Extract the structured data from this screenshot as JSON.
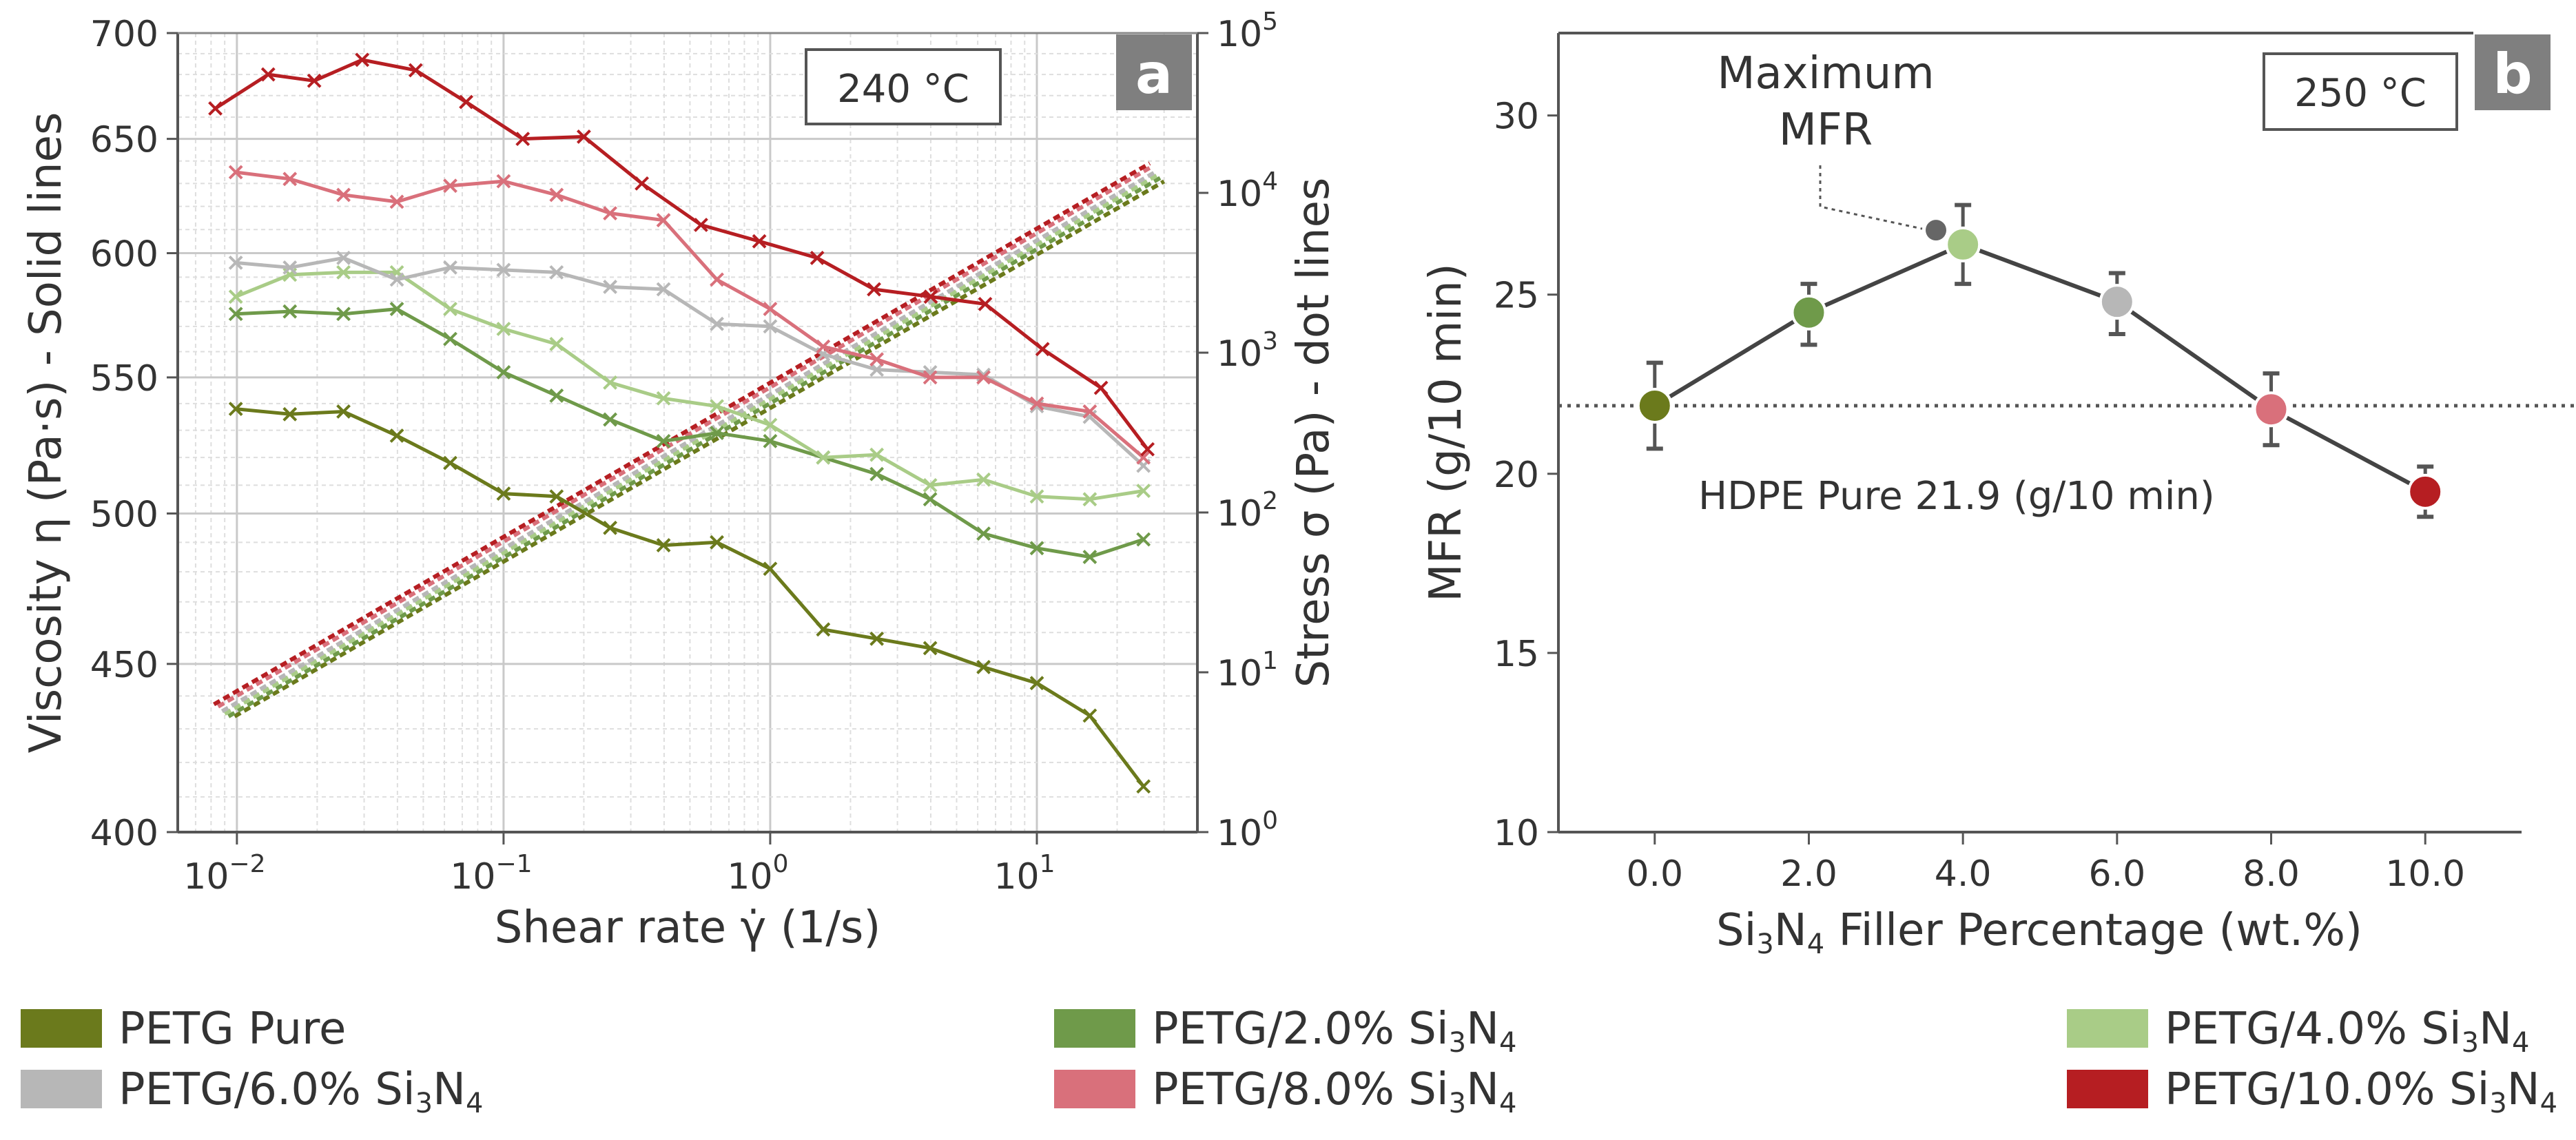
{
  "colors": {
    "petg_pure": "#6b7a1c",
    "petg_2": "#6f9a4a",
    "petg_4": "#a9cc87",
    "petg_6": "#b7b7b7",
    "petg_8": "#d9707b",
    "petg_10": "#b61e22",
    "grid_major": "#c9c9c9",
    "grid_minor": "#dedede",
    "panel_tag_bg": "#7f7f7f"
  },
  "legend": [
    {
      "key": "petg_pure",
      "base": "PETG Pure",
      "sub3": "",
      "mid": "",
      "sub4": ""
    },
    {
      "key": "petg_2",
      "base": "PETG/2.0% Si",
      "sub3": "3",
      "mid": "N",
      "sub4": "4"
    },
    {
      "key": "petg_4",
      "base": "PETG/4.0% Si",
      "sub3": "3",
      "mid": "N",
      "sub4": "4"
    },
    {
      "key": "petg_6",
      "base": "PETG/6.0% Si",
      "sub3": "3",
      "mid": "N",
      "sub4": "4"
    },
    {
      "key": "petg_8",
      "base": "PETG/8.0% Si",
      "sub3": "3",
      "mid": "N",
      "sub4": "4"
    },
    {
      "key": "petg_10",
      "base": "PETG/10.0% Si",
      "sub3": "3",
      "mid": "N",
      "sub4": "4"
    }
  ],
  "chart_data": [
    {
      "type": "line",
      "panel_tag": "a",
      "temperature_label": "240 °C",
      "xlabel": "Shear rate γ̇  (1/s)",
      "ylabel": "Viscosity η (Pa·s) - Solid lines",
      "y2label": "Stress σ (Pa) - dot lines",
      "x_scale": "log",
      "xlim": [
        0.006,
        40
      ],
      "x_ticks": [
        {
          "v": 0.01,
          "base": "10",
          "exp": "−2"
        },
        {
          "v": 0.1,
          "base": "10",
          "exp": "−1"
        },
        {
          "v": 1,
          "base": "10",
          "exp": "0"
        },
        {
          "v": 10,
          "base": "10",
          "exp": "1"
        }
      ],
      "y_scale": "log",
      "ylim": [
        400,
        700
      ],
      "y_ticks": [
        400,
        450,
        500,
        550,
        600,
        650,
        700
      ],
      "y2_scale": "log",
      "y2lim": [
        1,
        100000
      ],
      "y2_ticks": [
        {
          "v": 1,
          "base": "10",
          "exp": "0"
        },
        {
          "v": 10,
          "base": "10",
          "exp": "1"
        },
        {
          "v": 100,
          "base": "10",
          "exp": "2"
        },
        {
          "v": 1000,
          "base": "10",
          "exp": "3"
        },
        {
          "v": 10000,
          "base": "10",
          "exp": "4"
        },
        {
          "v": 100000,
          "base": "10",
          "exp": "5"
        }
      ],
      "grid": true,
      "viscosity_series": [
        {
          "name": "PETG Pure",
          "key": "petg_pure",
          "x": [
            0.0099,
            0.0158,
            0.0251,
            0.0398,
            0.0631,
            0.1,
            0.158,
            0.251,
            0.398,
            0.631,
            1.0,
            1.58,
            2.51,
            3.98,
            6.31,
            10.0,
            15.8,
            25.1
          ],
          "y": [
            538,
            536,
            537,
            528,
            518,
            507,
            506,
            495,
            489,
            490,
            481,
            461,
            458,
            455,
            449,
            444,
            434,
            413
          ]
        },
        {
          "name": "PETG/2.0% Si3N4",
          "key": "petg_2",
          "x": [
            0.0099,
            0.0158,
            0.0251,
            0.0398,
            0.0631,
            0.1,
            0.158,
            0.251,
            0.398,
            0.631,
            1.0,
            1.58,
            2.51,
            3.98,
            6.31,
            10.0,
            15.8,
            25.1
          ],
          "y": [
            575,
            576,
            575,
            577,
            565,
            552,
            543,
            534,
            526,
            529,
            526,
            520,
            514,
            505,
            493,
            488,
            485,
            491
          ]
        },
        {
          "name": "PETG/4.0% Si3N4",
          "key": "petg_4",
          "x": [
            0.0099,
            0.0158,
            0.0251,
            0.0398,
            0.0631,
            0.1,
            0.158,
            0.251,
            0.398,
            0.631,
            1.0,
            1.58,
            2.51,
            3.98,
            6.31,
            10.0,
            15.8,
            25.1
          ],
          "y": [
            582,
            591,
            592,
            592,
            577,
            569,
            563,
            548,
            542,
            539,
            532,
            520,
            521,
            510,
            512,
            506,
            505,
            508
          ]
        },
        {
          "name": "PETG/6.0% Si3N4",
          "key": "petg_6",
          "x": [
            0.0099,
            0.0158,
            0.0251,
            0.0398,
            0.0631,
            0.1,
            0.158,
            0.251,
            0.398,
            0.631,
            1.0,
            1.58,
            2.51,
            3.98,
            6.31,
            10.0,
            15.8,
            25.1
          ],
          "y": [
            596,
            594,
            598,
            589,
            594,
            593,
            592,
            586,
            585,
            571,
            570,
            559,
            553,
            552,
            551,
            539,
            535,
            517
          ]
        },
        {
          "name": "PETG/8.0% Si3N4",
          "key": "petg_8",
          "x": [
            0.0099,
            0.0158,
            0.0251,
            0.0398,
            0.0631,
            0.1,
            0.158,
            0.251,
            0.398,
            0.631,
            1.0,
            1.58,
            2.51,
            3.98,
            6.31,
            10.0,
            15.8,
            25.1
          ],
          "y": [
            635,
            632,
            625,
            622,
            629,
            631,
            625,
            617,
            614,
            589,
            577,
            562,
            557,
            550,
            550,
            540,
            537,
            520
          ]
        },
        {
          "name": "PETG/10.0% Si3N4",
          "key": "petg_10",
          "x": [
            0.0083,
            0.0131,
            0.0195,
            0.0295,
            0.0468,
            0.0724,
            0.118,
            0.2,
            0.33,
            0.55,
            0.91,
            1.5,
            2.45,
            4.0,
            6.4,
            10.5,
            17.4,
            26.0
          ],
          "y": [
            664,
            680,
            677,
            687,
            682,
            667,
            650,
            651,
            630,
            612,
            605,
            598,
            585,
            582,
            579,
            561,
            546,
            523
          ]
        }
      ],
      "stress_series": [
        {
          "name": "PETG Pure",
          "key": "petg_pure",
          "x": [
            0.0098,
            30
          ],
          "y": [
            5.3,
            11800
          ]
        },
        {
          "name": "PETG/2.0% Si3N4",
          "key": "petg_2",
          "x": [
            0.0093,
            29
          ],
          "y": [
            5.3,
            12400
          ]
        },
        {
          "name": "PETG/4.0% Si3N4",
          "key": "petg_4",
          "x": [
            0.009,
            28.5
          ],
          "y": [
            5.5,
            13000
          ]
        },
        {
          "name": "PETG/6.0% Si3N4",
          "key": "petg_6",
          "x": [
            0.0088,
            28
          ],
          "y": [
            5.7,
            13600
          ]
        },
        {
          "name": "PETG/8.0% Si3N4",
          "key": "petg_8",
          "x": [
            0.0085,
            27
          ],
          "y": [
            6.1,
            14600
          ]
        },
        {
          "name": "PETG/10.0% Si3N4",
          "key": "petg_10",
          "x": [
            0.0082,
            26.5
          ],
          "y": [
            6.3,
            15300
          ]
        }
      ]
    },
    {
      "type": "scatter",
      "panel_tag": "b",
      "temperature_label": "250 °C",
      "xlabel_parts": {
        "pre": "Si",
        "sub3": "3",
        "mid": "N",
        "sub4": "4",
        "post": " Filler Percentage (wt.%)"
      },
      "ylabel": "MFR (g/10 min)",
      "xlim": [
        -1.25,
        11.25
      ],
      "ylim": [
        10,
        32.3
      ],
      "x_ticks": [
        "0.0",
        "2.0",
        "4.0",
        "6.0",
        "8.0",
        "10.0"
      ],
      "y_ticks": [
        10,
        15,
        20,
        25,
        30
      ],
      "points": [
        {
          "x": 0.0,
          "y": 21.9,
          "err_low": 1.2,
          "err_high": 1.2,
          "key": "petg_pure"
        },
        {
          "x": 2.0,
          "y": 24.5,
          "err_low": 0.9,
          "err_high": 0.8,
          "key": "petg_2"
        },
        {
          "x": 4.0,
          "y": 26.4,
          "err_low": 1.1,
          "err_high": 1.1,
          "key": "petg_4"
        },
        {
          "x": 6.0,
          "y": 24.8,
          "err_low": 0.9,
          "err_high": 0.8,
          "key": "petg_6"
        },
        {
          "x": 8.0,
          "y": 21.8,
          "err_low": 1.0,
          "err_high": 1.0,
          "key": "petg_8"
        },
        {
          "x": 10.0,
          "y": 19.5,
          "err_low": 0.7,
          "err_high": 0.7,
          "key": "petg_10"
        }
      ],
      "maximum_point": {
        "x": 3.65,
        "y": 26.8
      },
      "maximum_label_line1": "Maximum",
      "maximum_label_line2": "MFR",
      "reference_line": {
        "y": 21.9,
        "label": "HDPE Pure 21.9 (g/10 min)"
      }
    }
  ]
}
